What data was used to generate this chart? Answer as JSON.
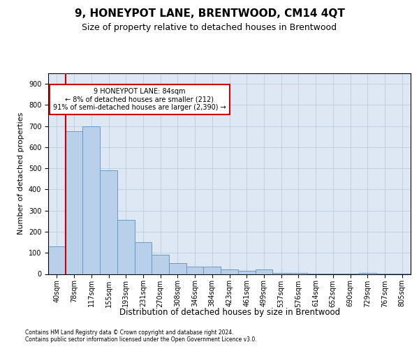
{
  "title": "9, HONEYPOT LANE, BRENTWOOD, CM14 4QT",
  "subtitle": "Size of property relative to detached houses in Brentwood",
  "xlabel": "Distribution of detached houses by size in Brentwood",
  "ylabel": "Number of detached properties",
  "footer_line1": "Contains HM Land Registry data © Crown copyright and database right 2024.",
  "footer_line2": "Contains public sector information licensed under the Open Government Licence v3.0.",
  "bin_labels": [
    "40sqm",
    "78sqm",
    "117sqm",
    "155sqm",
    "193sqm",
    "231sqm",
    "270sqm",
    "308sqm",
    "346sqm",
    "384sqm",
    "423sqm",
    "461sqm",
    "499sqm",
    "537sqm",
    "576sqm",
    "614sqm",
    "652sqm",
    "690sqm",
    "729sqm",
    "767sqm",
    "805sqm"
  ],
  "bar_heights": [
    130,
    675,
    700,
    490,
    255,
    150,
    90,
    50,
    35,
    35,
    20,
    15,
    20,
    6,
    5,
    1,
    1,
    1,
    5,
    1,
    1
  ],
  "bar_color": "#b8d0ea",
  "bar_edge_color": "#6699cc",
  "vline_color": "#cc0000",
  "vline_x_index": 1,
  "annotation_text": "9 HONEYPOT LANE: 84sqm\n← 8% of detached houses are smaller (212)\n91% of semi-detached houses are larger (2,390) →",
  "annotation_box_facecolor": "white",
  "annotation_box_edgecolor": "#cc0000",
  "ylim_max": 950,
  "yticks": [
    0,
    100,
    200,
    300,
    400,
    500,
    600,
    700,
    800,
    900
  ],
  "grid_color": "#bbccdd",
  "bg_color": "#dde8f4",
  "title_fontsize": 11,
  "subtitle_fontsize": 9,
  "axis_label_fontsize": 8,
  "tick_fontsize": 7,
  "xlabel_fontsize": 8.5,
  "footer_fontsize": 5.5
}
